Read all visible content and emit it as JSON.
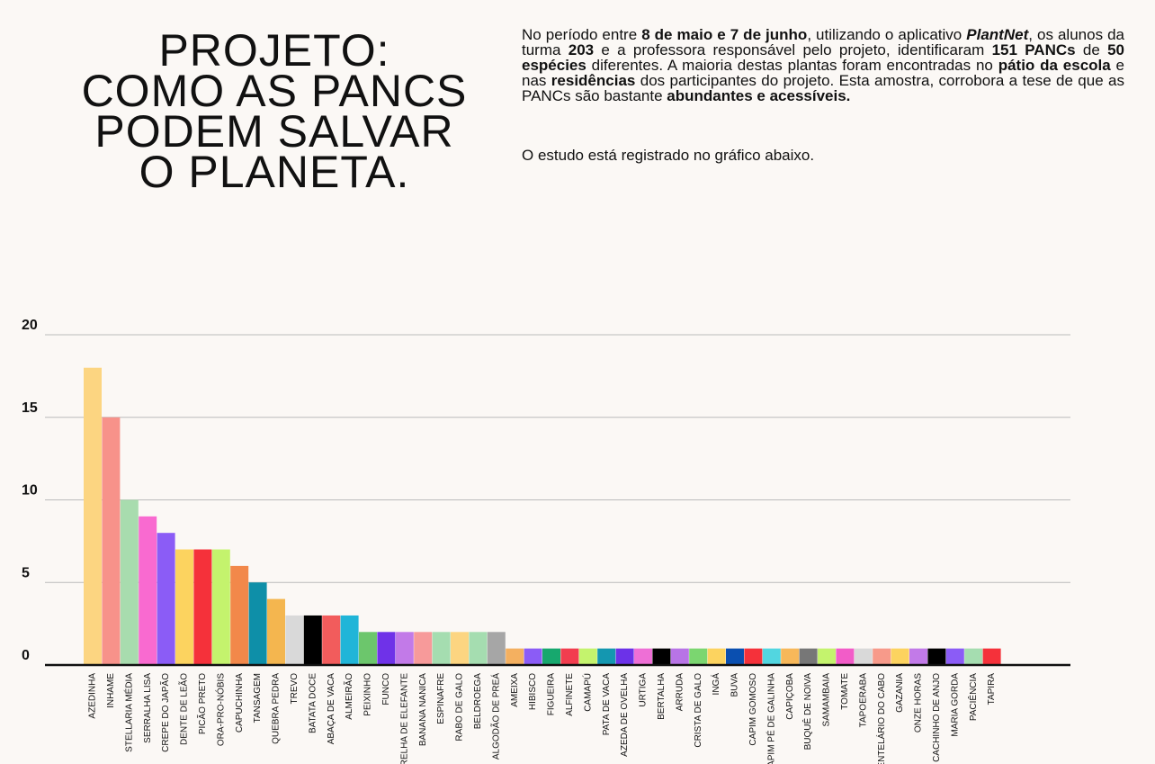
{
  "header": {
    "title_lines": [
      "PROJETO:",
      "COMO AS PANCS",
      "PODEM SALVAR",
      "O PLANETA."
    ],
    "paragraph": [
      {
        "text": "No período entre ",
        "style": "normal"
      },
      {
        "text": "8 de maio e 7 de junho",
        "style": "bold"
      },
      {
        "text": ", utilizando o aplicativo ",
        "style": "normal"
      },
      {
        "text": "PlantNet",
        "style": "bold-italic"
      },
      {
        "text": ", os alunos da turma ",
        "style": "normal"
      },
      {
        "text": "203",
        "style": "bold"
      },
      {
        "text": " e a professora responsável pelo projeto, identificaram ",
        "style": "normal"
      },
      {
        "text": "151 PANCs",
        "style": "bold"
      },
      {
        "text": " de ",
        "style": "normal"
      },
      {
        "text": "50 espécies",
        "style": "bold"
      },
      {
        "text": " diferentes. A maioria destas plantas foram encontradas no ",
        "style": "normal"
      },
      {
        "text": "pátio da escola",
        "style": "bold"
      },
      {
        "text": " e nas ",
        "style": "normal"
      },
      {
        "text": "residências",
        "style": "bold"
      },
      {
        "text": " dos participantes do projeto. Esta amostra, corrobora a tese de que as PANCs são bastante ",
        "style": "normal"
      },
      {
        "text": "abundantes e acessíveis.",
        "style": "bold"
      }
    ],
    "note": "O estudo está registrado no gráfico abaixo."
  },
  "chart_data": {
    "type": "bar",
    "categories": [
      "AZEDINHA",
      "INHAME",
      "STELLARIA MÉDIA",
      "SERRALHA LISA",
      "CREPE DO JAPÃO",
      "DENTE DE LEÃO",
      "PICÃO PRETO",
      "ORA-PRO-NÓBIS",
      "CAPUCHINHA",
      "TANSAGEM",
      "QUEBRA PEDRA",
      "TREVO",
      "BATATA DOCE",
      "ABAÇA DE VACA",
      "ALMEIRÃO",
      "PEIXINHO",
      "FUNCO",
      "ORELHA DE ELEFANTE",
      "BANANA NANICA",
      "ESPINAFRE",
      "RABO DE GALO",
      "BELDROEGA",
      "ALGODÃO DE PREÁ",
      "AMEIXA",
      "HIBISCO",
      "FIGUEIRA",
      "ALFINETE",
      "CAMAPÚ",
      "PATA DE VACA",
      "AZEDA DE OVELHA",
      "URTIGA",
      "BERTALHA",
      "ARRUDA",
      "CRISTA DE GALO",
      "INGÁ",
      "BUVA",
      "CAPIM GOMOSO",
      "CAPIM PÉ DE GALINHA",
      "CAPIÇOBA",
      "BUQUÊ DE NOIVA",
      "SAMAMBAIA",
      "TOMATE",
      "TAPOERABA",
      "DENTELÁRIO DO CABO",
      "GAZANIA",
      "ONZE HORAS",
      "CACHINHO DE ANJO",
      "MARIA GORDA",
      "PACIÊNCIA",
      "TAPIRA"
    ],
    "values": [
      18,
      15,
      10,
      9,
      8,
      7,
      7,
      7,
      6,
      5,
      4,
      3,
      3,
      3,
      3,
      2,
      2,
      2,
      2,
      2,
      2,
      2,
      2,
      1,
      1,
      1,
      1,
      1,
      1,
      1,
      1,
      1,
      1,
      1,
      1,
      1,
      1,
      1,
      1,
      1,
      1,
      1,
      1,
      1,
      1,
      1,
      1,
      1,
      1,
      1
    ],
    "colors": [
      "#fcd581",
      "#f7928a",
      "#a8dcae",
      "#f96ad0",
      "#8b5cf6",
      "#fcd35f",
      "#f5313a",
      "#c4f36d",
      "#f2884a",
      "#0e8fa8",
      "#f4b64f",
      "#d9d9d9",
      "#000000",
      "#f25c5c",
      "#20b5d8",
      "#6cc66c",
      "#6f32e8",
      "#c27ae8",
      "#f79a9a",
      "#a5ddb0",
      "#fcd581",
      "#a5ddb0",
      "#a6a6a6",
      "#f4b060",
      "#8b5cf6",
      "#17a86e",
      "#f23d4f",
      "#c4f36d",
      "#1497b0",
      "#6c32e8",
      "#ee6fd6",
      "#000000",
      "#b874e6",
      "#7bd670",
      "#fcd35f",
      "#0a4fb0",
      "#f5313a",
      "#52d6e0",
      "#f7b85a",
      "#777777",
      "#c4f36d",
      "#f25cc8",
      "#d9d9d9",
      "#f79a8a",
      "#fcd35f",
      "#c27ae8",
      "#000000",
      "#8b5cf6",
      "#a5ddb0",
      "#f5313a"
    ],
    "ylim": [
      0,
      20
    ],
    "yticks": [
      0,
      5,
      10,
      15,
      20
    ],
    "grid": true
  }
}
